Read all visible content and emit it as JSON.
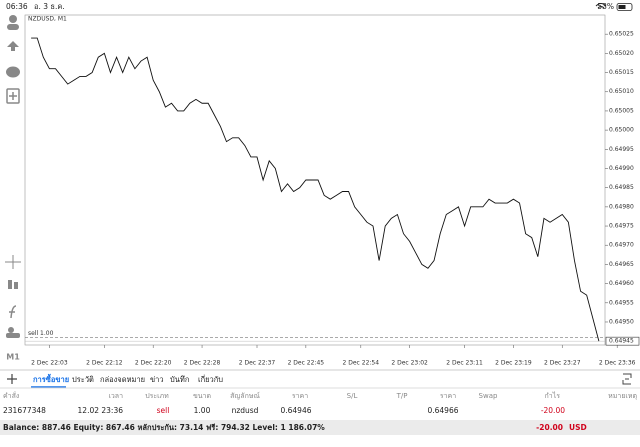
{
  "status_bar": {
    "time": "06:36",
    "date": "อ. 3 ธ.ค.",
    "battery": "53%"
  },
  "chart_data": {
    "type": "line",
    "title": "NZDUSD, M1",
    "color": "#111111",
    "x": [
      "2 Dec 22:00",
      "2 Dec 22:01",
      "2 Dec 22:02",
      "2 Dec 22:03",
      "2 Dec 22:04",
      "2 Dec 22:05",
      "2 Dec 22:06",
      "2 Dec 22:07",
      "2 Dec 22:08",
      "2 Dec 22:09",
      "2 Dec 22:10",
      "2 Dec 22:11",
      "2 Dec 22:12",
      "2 Dec 22:13",
      "2 Dec 22:14",
      "2 Dec 22:15",
      "2 Dec 22:16",
      "2 Dec 22:17",
      "2 Dec 22:18",
      "2 Dec 22:19",
      "2 Dec 22:20",
      "2 Dec 22:21",
      "2 Dec 22:22",
      "2 Dec 22:23",
      "2 Dec 22:24",
      "2 Dec 22:25",
      "2 Dec 22:26",
      "2 Dec 22:27",
      "2 Dec 22:28",
      "2 Dec 22:29",
      "2 Dec 22:30",
      "2 Dec 22:31",
      "2 Dec 22:32",
      "2 Dec 22:33",
      "2 Dec 22:34",
      "2 Dec 22:35",
      "2 Dec 22:36",
      "2 Dec 22:37",
      "2 Dec 22:38",
      "2 Dec 22:39",
      "2 Dec 22:40",
      "2 Dec 22:41",
      "2 Dec 22:42",
      "2 Dec 22:43",
      "2 Dec 22:44",
      "2 Dec 22:45",
      "2 Dec 22:46",
      "2 Dec 22:47",
      "2 Dec 22:48",
      "2 Dec 22:49",
      "2 Dec 22:50",
      "2 Dec 22:51",
      "2 Dec 22:52",
      "2 Dec 22:53",
      "2 Dec 22:54",
      "2 Dec 22:55",
      "2 Dec 22:56",
      "2 Dec 22:57",
      "2 Dec 22:58",
      "2 Dec 22:59",
      "2 Dec 23:00",
      "2 Dec 23:01",
      "2 Dec 23:02",
      "2 Dec 23:03",
      "2 Dec 23:04",
      "2 Dec 23:05",
      "2 Dec 23:06",
      "2 Dec 23:07",
      "2 Dec 23:08",
      "2 Dec 23:09",
      "2 Dec 23:10",
      "2 Dec 23:11",
      "2 Dec 23:12",
      "2 Dec 23:13",
      "2 Dec 23:14",
      "2 Dec 23:15",
      "2 Dec 23:16",
      "2 Dec 23:17",
      "2 Dec 23:18",
      "2 Dec 23:19",
      "2 Dec 23:20",
      "2 Dec 23:21",
      "2 Dec 23:22",
      "2 Dec 23:23",
      "2 Dec 23:24",
      "2 Dec 23:25",
      "2 Dec 23:26",
      "2 Dec 23:27",
      "2 Dec 23:28",
      "2 Dec 23:29",
      "2 Dec 23:30",
      "2 Dec 23:31",
      "2 Dec 23:32",
      "2 Dec 23:33"
    ],
    "values": [
      0.65024,
      0.65024,
      0.65019,
      0.65016,
      0.65016,
      0.65014,
      0.65012,
      0.65013,
      0.65014,
      0.65014,
      0.65015,
      0.65019,
      0.6502,
      0.65015,
      0.65019,
      0.65015,
      0.65019,
      0.65016,
      0.65018,
      0.65019,
      0.65013,
      0.6501,
      0.65006,
      0.65007,
      0.65005,
      0.65005,
      0.65007,
      0.65008,
      0.65007,
      0.65007,
      0.65004,
      0.65001,
      0.64997,
      0.64998,
      0.64998,
      0.64996,
      0.64993,
      0.64993,
      0.64987,
      0.64992,
      0.6499,
      0.64984,
      0.64986,
      0.64984,
      0.64985,
      0.64987,
      0.64987,
      0.64987,
      0.64983,
      0.64982,
      0.64983,
      0.64984,
      0.64984,
      0.6498,
      0.64978,
      0.64976,
      0.64975,
      0.64966,
      0.64975,
      0.64977,
      0.64978,
      0.64973,
      0.64971,
      0.64968,
      0.64965,
      0.64964,
      0.64966,
      0.64973,
      0.64978,
      0.64979,
      0.6498,
      0.64975,
      0.6498,
      0.6498,
      0.6498,
      0.64982,
      0.64981,
      0.64981,
      0.64981,
      0.64982,
      0.64981,
      0.64973,
      0.64972,
      0.64967,
      0.64977,
      0.64976,
      0.64977,
      0.64978,
      0.64976,
      0.64966,
      0.64958,
      0.64957,
      0.64951,
      0.64945
    ],
    "xlim": [
      "2 Dec 21:59",
      "2 Dec 23:34"
    ],
    "xticks": [
      "2 Dec 22:03",
      "2 Dec 22:12",
      "2 Dec 22:20",
      "2 Dec 22:28",
      "2 Dec 22:37",
      "2 Dec 22:45",
      "2 Dec 22:54",
      "2 Dec 23:02",
      "2 Dec 23:11",
      "2 Dec 23:19",
      "2 Dec 23:27",
      "2 Dec 23:36"
    ],
    "ylim": [
      0.64944,
      0.6503
    ],
    "yticks": [
      0.65025,
      {
        "value": 0.6502,
        "label": "0.65020"
      },
      0.65015,
      {
        "value": 0.6501,
        "label": "0.65010"
      },
      0.65005,
      {
        "value": 0.65,
        "label": "0.65000"
      },
      0.64995,
      {
        "value": 0.6499,
        "label": "0.64990"
      },
      0.64985,
      {
        "value": 0.6498,
        "label": "0.64980"
      },
      0.64975,
      {
        "value": 0.6497,
        "label": "0.64970"
      },
      0.64965,
      {
        "value": 0.6496,
        "label": "0.64960"
      },
      0.64955,
      {
        "value": 0.6495,
        "label": "0.64950"
      }
    ],
    "order_line": {
      "label": "sell 1.00",
      "value": 0.64946
    },
    "current_price": 0.64945
  },
  "timeframe": "M1",
  "tabs": [
    "การซื้อขาย",
    "ประวัติ",
    "กล่องจดหมาย",
    "ข่าว",
    "บันทึก",
    "เกี่ยวกับ"
  ],
  "table": {
    "headers": [
      "คำสั่ง",
      "เวลา",
      "ประเภท",
      "ขนาด",
      "สัญลักษณ์",
      "ราคา",
      "S/L",
      "T/P",
      "ราคา",
      "Swap",
      "กำไร",
      "หมายเหตุ"
    ],
    "row": {
      "order": "231677348",
      "time": "12.02 23:36",
      "type": "sell",
      "volume": "1.00",
      "symbol": "nzdusd",
      "open_price": "0.64946",
      "price": "0.64966",
      "profit": "-20.00"
    }
  },
  "footer": {
    "summary": "Balance: 887.46 Equity: 867.46 หลักประกัน: 73.14 ฟรี: 794.32 Level: 1 186.07%",
    "profit": "-20.00",
    "currency": "USD"
  }
}
